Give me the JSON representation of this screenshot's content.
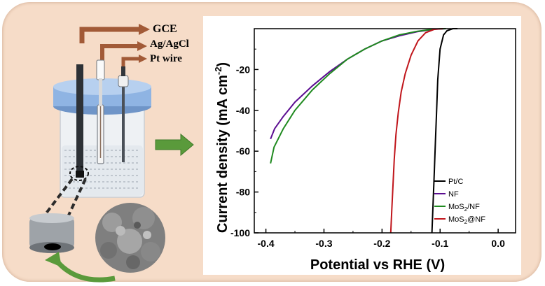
{
  "setup": {
    "electrode_labels": [
      "GCE",
      "Ag/AgCl",
      "Pt wire"
    ]
  },
  "colors": {
    "background_panel": "#f6dcc8",
    "arrow_brown": "#a25a37",
    "arrow_green": "#5a9a3b",
    "cap_blue": "#8fb4e3"
  },
  "chart_data": {
    "type": "line",
    "xlabel": "Potential vs RHE (V)",
    "ylabel": "Current density (mA cm",
    "ylabel_sup": "-2",
    "ylabel_close": ")",
    "xlim": [
      -0.42,
      0.03
    ],
    "ylim": [
      -100,
      0
    ],
    "x_ticks": [
      -0.4,
      -0.3,
      -0.2,
      -0.1,
      0.0
    ],
    "x_tick_labels": [
      "-0.4",
      "-0.3",
      "-0.2",
      "-0.1",
      "0.0"
    ],
    "y_ticks": [
      -20,
      -40,
      -60,
      -80,
      -100
    ],
    "y_tick_labels": [
      "-20",
      "-40",
      "-60",
      "-80",
      "-100"
    ],
    "legend_position": "bottom-right",
    "series": [
      {
        "name": "Pt/C",
        "label_main": "Pt/C",
        "label_sub": "",
        "label_tail": "",
        "color": "#000000",
        "x": [
          -0.114,
          -0.112,
          -0.11,
          -0.108,
          -0.106,
          -0.104,
          -0.1,
          -0.094,
          -0.088,
          -0.078,
          -0.07
        ],
        "y": [
          -100,
          -85,
          -70,
          -55,
          -40,
          -25,
          -10,
          -3,
          -1,
          0,
          0
        ]
      },
      {
        "name": "NF",
        "label_main": "NF",
        "label_sub": "",
        "label_tail": "",
        "color": "#5b0d91",
        "x": [
          -0.392,
          -0.385,
          -0.37,
          -0.35,
          -0.32,
          -0.29,
          -0.26,
          -0.23,
          -0.2,
          -0.17,
          -0.14,
          -0.11,
          -0.09
        ],
        "y": [
          -54,
          -49,
          -43,
          -36,
          -28,
          -21,
          -15,
          -10,
          -6,
          -3.5,
          -1.5,
          -0.3,
          0
        ]
      },
      {
        "name": "MoS2/NF",
        "label_main": "MoS",
        "label_sub": "2",
        "label_tail": "/NF",
        "color": "#1f8a1f",
        "x": [
          -0.392,
          -0.386,
          -0.37,
          -0.35,
          -0.32,
          -0.29,
          -0.26,
          -0.23,
          -0.2,
          -0.17,
          -0.14,
          -0.11,
          -0.09
        ],
        "y": [
          -66,
          -58,
          -49,
          -40,
          -30,
          -22,
          -15,
          -10,
          -6,
          -3,
          -1.3,
          -0.2,
          0
        ]
      },
      {
        "name": "MoS2@NF",
        "label_main": "MoS",
        "label_sub": "2",
        "label_tail": "@NF",
        "color": "#c0151b",
        "x": [
          -0.185,
          -0.183,
          -0.181,
          -0.179,
          -0.176,
          -0.172,
          -0.167,
          -0.16,
          -0.15,
          -0.138,
          -0.125,
          -0.11,
          -0.095
        ],
        "y": [
          -100,
          -88,
          -76,
          -64,
          -52,
          -41,
          -31,
          -22,
          -13,
          -6,
          -2,
          -0.3,
          0
        ]
      }
    ]
  }
}
